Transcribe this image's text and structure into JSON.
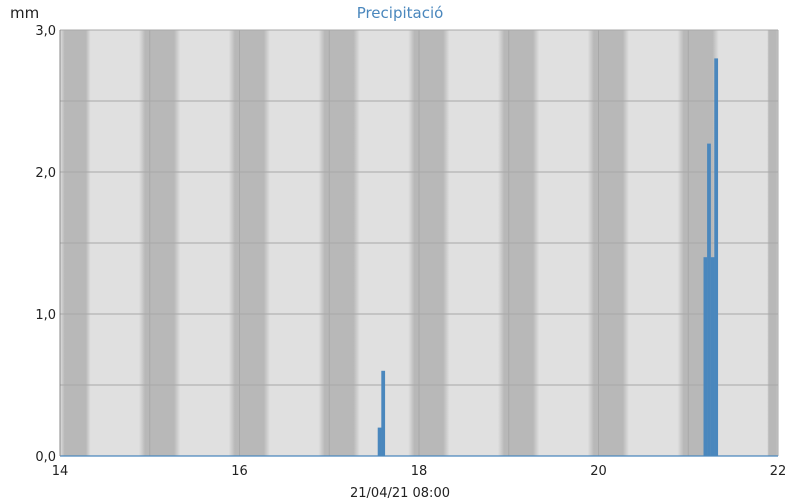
{
  "chart_data": {
    "type": "bar",
    "title": "Precipitació",
    "ylabel": "mm",
    "xlabel": "",
    "timestamp": "21/04/21 08:00",
    "xlim": [
      14,
      22
    ],
    "ylim": [
      0,
      3
    ],
    "y_ticks": [
      "0,0",
      "1,0",
      "2,0",
      "3,0"
    ],
    "x_ticks": [
      "14",
      "16",
      "18",
      "20",
      "22"
    ],
    "grid": true,
    "bar_width_days": 0.042,
    "bars": [
      {
        "x": 17.54,
        "value": 0.2
      },
      {
        "x": 17.58,
        "value": 0.6
      },
      {
        "x": 21.17,
        "value": 1.4
      },
      {
        "x": 21.21,
        "value": 2.2
      },
      {
        "x": 21.25,
        "value": 1.4
      },
      {
        "x": 21.29,
        "value": 2.8
      }
    ],
    "colors": {
      "bar": "#4a87bd",
      "plot_bg": "#e0e0e0",
      "night_band": "#b8b8b8",
      "grid": "#a8a8a8",
      "title": "#4a87bd"
    }
  }
}
